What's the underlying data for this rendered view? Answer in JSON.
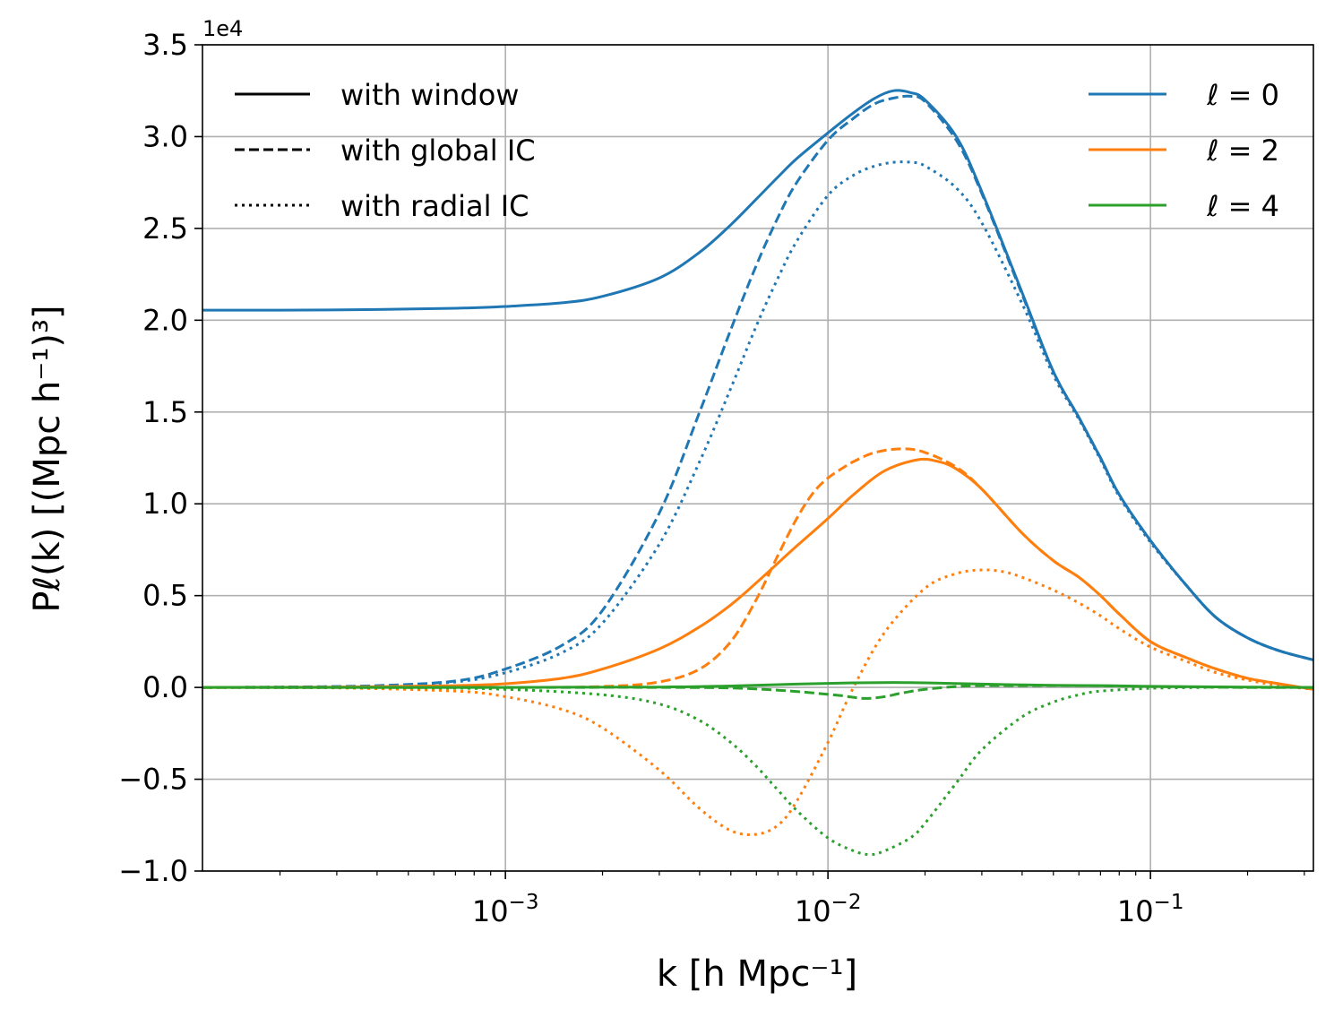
{
  "chart_data": {
    "type": "line",
    "xscale": "log",
    "xlim": [
      0.000115,
      0.32
    ],
    "ylim": [
      -10000,
      35000
    ],
    "grid": true,
    "offset_text": "1e4",
    "xlabel": "k [h Mpc⁻¹]",
    "ylabel": "Pℓ(k) [(Mpc h⁻¹)³]",
    "x_ticks": [
      {
        "value": 0.001,
        "base": "10",
        "exp": "−3"
      },
      {
        "value": 0.01,
        "base": "10",
        "exp": "−2"
      },
      {
        "value": 0.1,
        "base": "10",
        "exp": "−1"
      }
    ],
    "y_ticks": [
      {
        "value": -10000,
        "label": "−1.0"
      },
      {
        "value": -5000,
        "label": "−0.5"
      },
      {
        "value": 0,
        "label": "0.0"
      },
      {
        "value": 5000,
        "label": "0.5"
      },
      {
        "value": 10000,
        "label": "1.0"
      },
      {
        "value": 15000,
        "label": "1.5"
      },
      {
        "value": 20000,
        "label": "2.0"
      },
      {
        "value": 25000,
        "label": "2.5"
      },
      {
        "value": 30000,
        "label": "3.0"
      },
      {
        "value": 35000,
        "label": "3.5"
      }
    ],
    "legend_styles": {
      "position": "upper-left",
      "entries": [
        {
          "style": "solid",
          "label": "with window"
        },
        {
          "style": "dashed",
          "label": "with global IC"
        },
        {
          "style": "dotted",
          "label": "with radial IC"
        }
      ]
    },
    "legend_multipoles": {
      "position": "upper-right",
      "entries": [
        {
          "series": "l0",
          "label": "ℓ = 0",
          "color": "#1f77b4"
        },
        {
          "series": "l2",
          "label": "ℓ = 2",
          "color": "#ff7f0e"
        },
        {
          "series": "l4",
          "label": "ℓ = 4",
          "color": "#2ca02c"
        }
      ]
    },
    "series": [
      {
        "name": "l0-with-window",
        "multipole": 0,
        "style": "solid",
        "color": "#1f77b4",
        "x": [
          0.000115,
          0.0002,
          0.0004,
          0.0007,
          0.001,
          0.0015,
          0.002,
          0.003,
          0.004,
          0.005,
          0.006,
          0.007,
          0.008,
          0.01,
          0.012,
          0.014,
          0.016,
          0.018,
          0.02,
          0.025,
          0.03,
          0.04,
          0.05,
          0.06,
          0.07,
          0.08,
          0.1,
          0.13,
          0.16,
          0.2,
          0.25,
          0.32
        ],
        "y": [
          20550,
          20550,
          20580,
          20650,
          20750,
          20950,
          21300,
          22300,
          23700,
          25200,
          26600,
          27800,
          28800,
          30200,
          31300,
          32100,
          32500,
          32400,
          32000,
          30000,
          27000,
          21500,
          17200,
          14700,
          12500,
          10500,
          8000,
          5500,
          3800,
          2700,
          2000,
          1500
        ]
      },
      {
        "name": "l0-with-global-ic",
        "multipole": 0,
        "style": "dashed",
        "color": "#1f77b4",
        "x": [
          0.000115,
          0.0002,
          0.0004,
          0.0007,
          0.001,
          0.0015,
          0.002,
          0.003,
          0.004,
          0.005,
          0.006,
          0.007,
          0.008,
          0.01,
          0.012,
          0.014,
          0.016,
          0.018,
          0.02,
          0.025,
          0.03,
          0.04,
          0.05,
          0.06,
          0.07,
          0.08,
          0.1,
          0.13,
          0.16,
          0.2,
          0.25,
          0.32
        ],
        "y": [
          0,
          20,
          100,
          350,
          1000,
          2300,
          4200,
          9500,
          15000,
          19500,
          23000,
          25600,
          27500,
          29800,
          31000,
          31800,
          32100,
          32200,
          31900,
          29800,
          26900,
          21400,
          17200,
          14700,
          12500,
          10500,
          8000,
          5500,
          3800,
          2700,
          2000,
          1500
        ]
      },
      {
        "name": "l0-with-radial-ic",
        "multipole": 0,
        "style": "dotted",
        "color": "#1f77b4",
        "x": [
          0.000115,
          0.0002,
          0.0004,
          0.0007,
          0.001,
          0.0015,
          0.002,
          0.003,
          0.004,
          0.005,
          0.006,
          0.007,
          0.008,
          0.01,
          0.012,
          0.014,
          0.016,
          0.018,
          0.02,
          0.025,
          0.03,
          0.04,
          0.05,
          0.06,
          0.07,
          0.08,
          0.1,
          0.13,
          0.16,
          0.2,
          0.25,
          0.32
        ],
        "y": [
          0,
          20,
          80,
          300,
          800,
          1900,
          3500,
          7800,
          12300,
          16300,
          19700,
          22300,
          24300,
          26800,
          27900,
          28400,
          28600,
          28600,
          28400,
          27200,
          25300,
          20900,
          17000,
          14600,
          12400,
          10400,
          7900,
          5500,
          3800,
          2700,
          2000,
          1500
        ]
      },
      {
        "name": "l2-with-window",
        "multipole": 2,
        "style": "solid",
        "color": "#ff7f0e",
        "x": [
          0.000115,
          0.0003,
          0.0007,
          0.001,
          0.0015,
          0.002,
          0.003,
          0.004,
          0.005,
          0.006,
          0.008,
          0.01,
          0.012,
          0.015,
          0.019,
          0.022,
          0.025,
          0.03,
          0.04,
          0.05,
          0.06,
          0.07,
          0.08,
          0.1,
          0.13,
          0.16,
          0.2,
          0.25,
          0.32
        ],
        "y": [
          0,
          20,
          100,
          200,
          500,
          1000,
          2100,
          3300,
          4500,
          5700,
          7700,
          9200,
          10500,
          11800,
          12400,
          12300,
          11900,
          10800,
          8400,
          6900,
          6000,
          5000,
          4000,
          2500,
          1600,
          1000,
          500,
          200,
          -100
        ]
      },
      {
        "name": "l2-with-global-ic",
        "multipole": 2,
        "style": "dashed",
        "color": "#ff7f0e",
        "x": [
          0.000115,
          0.001,
          0.002,
          0.003,
          0.004,
          0.005,
          0.006,
          0.007,
          0.008,
          0.009,
          0.01,
          0.011,
          0.012,
          0.014,
          0.017,
          0.02,
          0.025,
          0.03,
          0.04,
          0.05,
          0.06,
          0.07,
          0.08,
          0.1,
          0.13,
          0.16,
          0.2,
          0.25,
          0.32
        ],
        "y": [
          0,
          0,
          50,
          300,
          1000,
          2500,
          4800,
          7200,
          9200,
          10600,
          11400,
          11900,
          12300,
          12800,
          13000,
          12800,
          12000,
          10800,
          8400,
          6900,
          6000,
          5000,
          4000,
          2500,
          1600,
          1000,
          500,
          200,
          -100
        ]
      },
      {
        "name": "l2-with-radial-ic",
        "multipole": 2,
        "style": "dotted",
        "color": "#ff7f0e",
        "x": [
          0.000115,
          0.0003,
          0.0007,
          0.001,
          0.0015,
          0.002,
          0.003,
          0.004,
          0.005,
          0.006,
          0.007,
          0.008,
          0.01,
          0.012,
          0.015,
          0.02,
          0.025,
          0.03,
          0.035,
          0.04,
          0.05,
          0.06,
          0.07,
          0.08,
          0.1,
          0.13,
          0.16,
          0.2,
          0.25,
          0.32
        ],
        "y": [
          0,
          -30,
          -200,
          -500,
          -1200,
          -2200,
          -4500,
          -6600,
          -7800,
          -8000,
          -7500,
          -6200,
          -3000,
          0,
          3000,
          5400,
          6200,
          6400,
          6300,
          6000,
          5300,
          4600,
          3900,
          3200,
          2200,
          1400,
          800,
          400,
          100,
          -100
        ]
      },
      {
        "name": "l4-with-window",
        "multipole": 4,
        "style": "solid",
        "color": "#2ca02c",
        "x": [
          0.000115,
          0.001,
          0.003,
          0.005,
          0.008,
          0.012,
          0.016,
          0.02,
          0.03,
          0.05,
          0.07,
          0.1,
          0.2,
          0.32
        ],
        "y": [
          0,
          0,
          20,
          80,
          180,
          250,
          270,
          250,
          180,
          120,
          100,
          60,
          20,
          0
        ]
      },
      {
        "name": "l4-with-global-ic",
        "multipole": 4,
        "style": "dashed",
        "color": "#2ca02c",
        "x": [
          0.000115,
          0.001,
          0.003,
          0.005,
          0.007,
          0.009,
          0.011,
          0.013,
          0.015,
          0.017,
          0.02,
          0.025,
          0.03,
          0.04,
          0.06,
          0.1,
          0.2,
          0.32
        ],
        "y": [
          0,
          0,
          0,
          -30,
          -150,
          -300,
          -450,
          -600,
          -500,
          -300,
          -100,
          50,
          100,
          100,
          100,
          50,
          0,
          0
        ]
      },
      {
        "name": "l4-with-radial-ic",
        "multipole": 4,
        "style": "dotted",
        "color": "#2ca02c",
        "x": [
          0.000115,
          0.0005,
          0.001,
          0.002,
          0.003,
          0.004,
          0.005,
          0.006,
          0.007,
          0.008,
          0.01,
          0.012,
          0.0135,
          0.015,
          0.018,
          0.02,
          0.025,
          0.03,
          0.04,
          0.05,
          0.06,
          0.07,
          0.1,
          0.15,
          0.2,
          0.32
        ],
        "y": [
          0,
          -20,
          -100,
          -400,
          -900,
          -1800,
          -3000,
          -4300,
          -5600,
          -6700,
          -8200,
          -8900,
          -9100,
          -8900,
          -8200,
          -7400,
          -5200,
          -3400,
          -1600,
          -800,
          -400,
          -200,
          -50,
          0,
          0,
          0
        ]
      }
    ]
  }
}
